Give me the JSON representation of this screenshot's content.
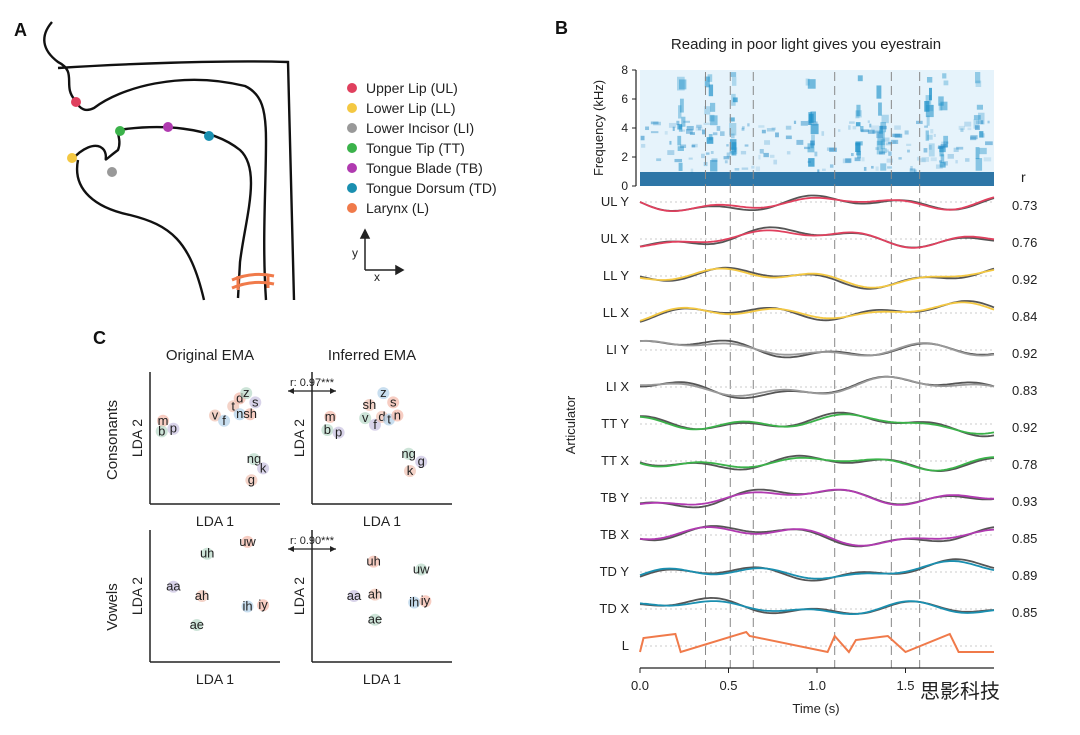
{
  "panels": {
    "a": "A",
    "b": "B",
    "c": "C"
  },
  "watermark": "思影科技",
  "panel_a": {
    "legend": [
      {
        "label": "Upper Lip (UL)",
        "color": "#e0405e"
      },
      {
        "label": "Lower Lip (LL)",
        "color": "#f4c842"
      },
      {
        "label": "Lower Incisor (LI)",
        "color": "#999999"
      },
      {
        "label": "Tongue Tip (TT)",
        "color": "#3bb24a"
      },
      {
        "label": "Tongue Blade (TB)",
        "color": "#b03ab0"
      },
      {
        "label": "Tongue Dorsum (TD)",
        "color": "#1a8fb0"
      },
      {
        "label": "Larynx (L)",
        "color": "#f07a4a"
      }
    ],
    "axis_y": "y",
    "axis_x": "x"
  },
  "chart_data": [
    {
      "type": "line",
      "title": "Reading in poor light gives you eyestrain",
      "xlabel": "Time (s)",
      "ylabel": "Articulator",
      "xlim": [
        0,
        2.0
      ],
      "x_ticks": [
        "0.0",
        "0.5",
        "1.0",
        "1.5"
      ],
      "spectrogram": {
        "ylabel": "Frequency (kHz)",
        "ylim": [
          0,
          8
        ],
        "y_ticks": [
          "0",
          "2",
          "4",
          "6",
          "8"
        ]
      },
      "r_header": "r",
      "series": [
        {
          "name": "UL Y",
          "r": "0.73",
          "color": "#e0405e"
        },
        {
          "name": "UL X",
          "r": "0.76",
          "color": "#e0405e"
        },
        {
          "name": "LL Y",
          "r": "0.92",
          "color": "#f4c842"
        },
        {
          "name": "LL X",
          "r": "0.84",
          "color": "#f4c842"
        },
        {
          "name": "LI Y",
          "r": "0.92",
          "color": "#999999"
        },
        {
          "name": "LI X",
          "r": "0.83",
          "color": "#999999"
        },
        {
          "name": "TT Y",
          "r": "0.92",
          "color": "#3bb24a"
        },
        {
          "name": "TT X",
          "r": "0.78",
          "color": "#3bb24a"
        },
        {
          "name": "TB Y",
          "r": "0.93",
          "color": "#b03ab0"
        },
        {
          "name": "TB X",
          "r": "0.85",
          "color": "#b03ab0"
        },
        {
          "name": "TD Y",
          "r": "0.89",
          "color": "#1a8fb0"
        },
        {
          "name": "TD X",
          "r": "0.85",
          "color": "#1a8fb0"
        },
        {
          "name": "L",
          "r": "",
          "color": "#f07a4a"
        }
      ],
      "word_boundaries_s": [
        0.37,
        0.51,
        0.64,
        1.1,
        1.42,
        1.58
      ]
    },
    {
      "type": "scatter",
      "row_labels": [
        "Consonants",
        "Vowels"
      ],
      "col_labels": [
        "Original EMA",
        "Inferred EMA"
      ],
      "xlabel": "LDA 1",
      "ylabel": "LDA 2",
      "correlations": [
        "r: 0.97***",
        "r: 0.90***"
      ],
      "consonants_original": [
        {
          "label": "m",
          "x": 0.1,
          "y": 0.6
        },
        {
          "label": "b",
          "x": 0.09,
          "y": 0.52
        },
        {
          "label": "p",
          "x": 0.18,
          "y": 0.54
        },
        {
          "label": "v",
          "x": 0.5,
          "y": 0.64
        },
        {
          "label": "f",
          "x": 0.57,
          "y": 0.6
        },
        {
          "label": "d",
          "x": 0.69,
          "y": 0.77
        },
        {
          "label": "z",
          "x": 0.74,
          "y": 0.81
        },
        {
          "label": "s",
          "x": 0.81,
          "y": 0.74
        },
        {
          "label": "t",
          "x": 0.64,
          "y": 0.71
        },
        {
          "label": "n",
          "x": 0.69,
          "y": 0.65
        },
        {
          "label": "sh",
          "x": 0.77,
          "y": 0.65
        },
        {
          "label": "ng",
          "x": 0.8,
          "y": 0.31
        },
        {
          "label": "k",
          "x": 0.87,
          "y": 0.24
        },
        {
          "label": "g",
          "x": 0.78,
          "y": 0.15
        }
      ],
      "consonants_inferred": [
        {
          "label": "m",
          "x": 0.13,
          "y": 0.63
        },
        {
          "label": "b",
          "x": 0.11,
          "y": 0.53
        },
        {
          "label": "p",
          "x": 0.19,
          "y": 0.51
        },
        {
          "label": "sh",
          "x": 0.41,
          "y": 0.72
        },
        {
          "label": "z",
          "x": 0.51,
          "y": 0.81
        },
        {
          "label": "s",
          "x": 0.58,
          "y": 0.74
        },
        {
          "label": "v",
          "x": 0.38,
          "y": 0.62
        },
        {
          "label": "f",
          "x": 0.45,
          "y": 0.57
        },
        {
          "label": "d",
          "x": 0.5,
          "y": 0.63
        },
        {
          "label": "t",
          "x": 0.55,
          "y": 0.61
        },
        {
          "label": "n",
          "x": 0.61,
          "y": 0.64
        },
        {
          "label": "ng",
          "x": 0.69,
          "y": 0.35
        },
        {
          "label": "g",
          "x": 0.78,
          "y": 0.29
        },
        {
          "label": "k",
          "x": 0.7,
          "y": 0.22
        }
      ],
      "vowels_original": [
        {
          "label": "uw",
          "x": 0.75,
          "y": 0.88
        },
        {
          "label": "uh",
          "x": 0.44,
          "y": 0.79
        },
        {
          "label": "aa",
          "x": 0.18,
          "y": 0.54
        },
        {
          "label": "ah",
          "x": 0.4,
          "y": 0.47
        },
        {
          "label": "ih",
          "x": 0.75,
          "y": 0.39
        },
        {
          "label": "iy",
          "x": 0.87,
          "y": 0.4
        },
        {
          "label": "ae",
          "x": 0.36,
          "y": 0.25
        }
      ],
      "vowels_inferred": [
        {
          "label": "uh",
          "x": 0.44,
          "y": 0.73
        },
        {
          "label": "uw",
          "x": 0.78,
          "y": 0.67
        },
        {
          "label": "aa",
          "x": 0.3,
          "y": 0.47
        },
        {
          "label": "ah",
          "x": 0.45,
          "y": 0.48
        },
        {
          "label": "ih",
          "x": 0.73,
          "y": 0.42
        },
        {
          "label": "iy",
          "x": 0.81,
          "y": 0.43
        },
        {
          "label": "ae",
          "x": 0.45,
          "y": 0.29
        }
      ]
    }
  ]
}
